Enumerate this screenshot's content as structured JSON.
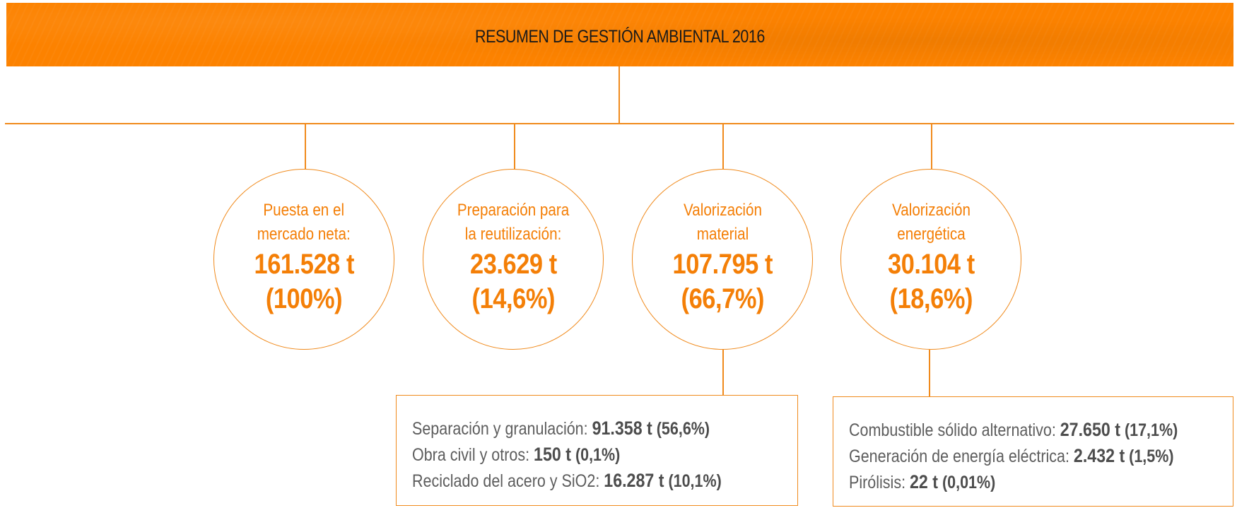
{
  "title": "RESUMEN DE GESTIÓN AMBIENTAL 2016",
  "circles": [
    {
      "label": "Puesta en el\nmercado neta:",
      "value": "161.528 t",
      "pct": "(100%)"
    },
    {
      "label": "Preparación para\nla reutilización:",
      "value": "23.629 t",
      "pct": "(14,6%)"
    },
    {
      "label": "Valorización\nmaterial",
      "value": "107.795 t",
      "pct": "(66,7%)"
    },
    {
      "label": "Valorización\nenergética",
      "value": "30.104 t",
      "pct": "(18,6%)"
    }
  ],
  "material_box": {
    "rows": [
      {
        "label": "Separación y granulación: ",
        "value": "91.358 t",
        "pct": " (56,6%)"
      },
      {
        "label": "Obra civil y otros: ",
        "value": "150 t",
        "pct": " (0,1%)"
      },
      {
        "label": "Reciclado del acero y SiO2: ",
        "value": "16.287 t",
        "pct": " (10,1%)"
      }
    ]
  },
  "energy_box": {
    "rows": [
      {
        "label": "Combustible sólido alternativo: ",
        "value": "27.650 t",
        "pct": " (17,1%)"
      },
      {
        "label": "Generación de energía eléctrica: ",
        "value": "2.432 t",
        "pct": " (1,5%)"
      },
      {
        "label": "Pirólisis: ",
        "value": "22 t",
        "pct": " (0,01%)"
      }
    ]
  },
  "colors": {
    "accent": "#fc8200",
    "line": "#f08a1c",
    "text_orange": "#f47f07",
    "text_gray": "#5d5d5d"
  }
}
